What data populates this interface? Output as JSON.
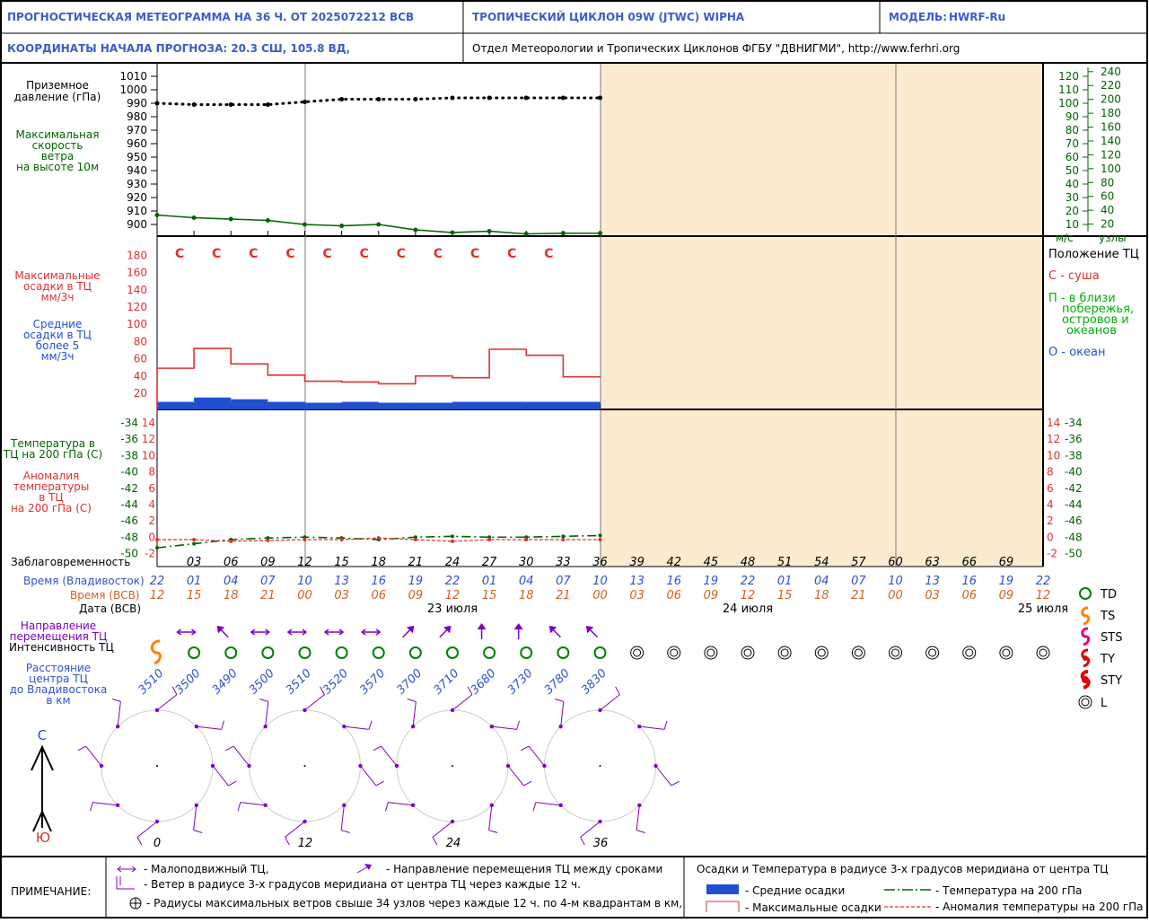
{
  "header": {
    "title": "ПРОГНОСТИЧЕСКАЯ МЕТЕОГРАММА НА 36 Ч. ОТ 2025072212 ВСВ",
    "cyclone": "ТРОПИЧЕСКИЙ ЦИКЛОН  09W  (JTWC)   WIPHA",
    "model_label": "МОДЕЛЬ:",
    "model": "HWRF-Ru",
    "coords": "КООРДИНАТЫ НАЧАЛА ПРОГНОЗА:  20.3  СШ,   105.8  ВД,",
    "org": "Отдел Метеорологии и Тропических Циклонов ФГБУ \"ДВНИГМИ\",  http://www.ferhri.org"
  },
  "labels": {
    "pressure": [
      "Приземное",
      "давление (гПа)"
    ],
    "wind": [
      "Максимальная",
      "скорость",
      "ветра",
      "на высоте 10м"
    ],
    "precip_max": [
      "Максимальные",
      "осадки в ТЦ",
      "мм/3ч"
    ],
    "precip_mean": [
      "Средние",
      "осадки в ТЦ",
      "более 5",
      "мм/3ч"
    ],
    "temp": [
      "Температура в",
      "ТЦ на 200 гПа (С)"
    ],
    "anom": [
      "Аномалия",
      "температуры",
      "в ТЦ",
      "на 200 гПа (С)"
    ],
    "lead": "Заблаговременность",
    "time_vl": "Время (Владивосток)",
    "time_vsv": "Время (ВСВ)",
    "date": "Дата (ВСВ)",
    "direction": [
      "Направление",
      "перемещения ТЦ"
    ],
    "intensity": "Интенсивность ТЦ",
    "distance": [
      "Расстояние",
      "центра ТЦ",
      "до Владивостока",
      "в км"
    ],
    "north": "С",
    "south": "Ю",
    "wind_units_ms": "м/с",
    "wind_units_kt": "узлы"
  },
  "position_legend": {
    "title": "Положение ТЦ",
    "land": "С - суша",
    "coast": [
      "П - в близи",
      "побережья,",
      "островов и",
      "океанов"
    ],
    "ocean": "О - океан"
  },
  "intensity_legend": [
    "TD",
    "TS",
    "STS",
    "TY",
    "STY",
    "L"
  ],
  "dates": [
    "23 июля",
    "24 июля",
    "25 июля"
  ],
  "wind_radii_hours": [
    "0",
    "12",
    "24",
    "36"
  ],
  "notes": {
    "title": "ПРИМЕЧАНИЕ:",
    "stationary": "- Малоподвижный ТЦ,",
    "direction": "- Направление перемещения ТЦ между сроками",
    "wind": "- Ветер в радиусе 3-х градусов меридиана от центра ТЦ через каждые 12 ч.",
    "radii": "- Радиусы максимальных ветров свыше 34 узлов через каждые 12 ч. по 4-м квадрантам в км,",
    "right_title": "Осадки и Температура в радиусе 3-х градусов меридиана от центра ТЦ",
    "mean_precip": "- Средние осадки",
    "max_precip": "- Максимальные осадки",
    "temp": "- Температура на 200 гПа",
    "anom": "- Аномалия температуры на 200 гПа"
  },
  "colors": {
    "header_text": "#3a5ccc",
    "pressure": "#000000",
    "wind": "#006400",
    "max_precip": "#e03030",
    "mean_precip": "#2050d0",
    "temp": "#006400",
    "anomaly": "#e03030",
    "forecast_bg": "#fdebd0",
    "time_vl": "#3050d0",
    "time_vsv": "#d06020",
    "coast": "#00b000",
    "direction": "#8000c0",
    "td": "#008000",
    "ts": "#ff8000",
    "sts": "#e0008a",
    "ty": "#e00000"
  },
  "chart_data": {
    "type": "line",
    "lead_hours": [
      "03",
      "06",
      "09",
      "12",
      "15",
      "18",
      "21",
      "24",
      "27",
      "30",
      "33",
      "36",
      "39",
      "42",
      "45",
      "48",
      "51",
      "54",
      "57",
      "60",
      "63",
      "66",
      "69"
    ],
    "time_vladivostok": [
      "22",
      "01",
      "04",
      "07",
      "10",
      "13",
      "16",
      "19",
      "22",
      "01",
      "04",
      "07",
      "10",
      "13",
      "16",
      "19",
      "22",
      "01",
      "04",
      "07",
      "10",
      "13",
      "16",
      "19",
      "22"
    ],
    "time_vsv": [
      "12",
      "15",
      "18",
      "21",
      "00",
      "03",
      "06",
      "09",
      "12",
      "15",
      "18",
      "21",
      "00",
      "03",
      "06",
      "09",
      "12",
      "15",
      "18",
      "21",
      "00",
      "03",
      "06",
      "09",
      "12"
    ],
    "forecast_hours": [
      0,
      3,
      6,
      9,
      12,
      15,
      18,
      21,
      24,
      27,
      30,
      33,
      36
    ],
    "pressure_axis": {
      "ticks": [
        900,
        910,
        920,
        930,
        940,
        950,
        960,
        970,
        980,
        990,
        1000,
        1010
      ]
    },
    "pressure_hpa": [
      990,
      989,
      989,
      989,
      991,
      993,
      993,
      993,
      994,
      994,
      994,
      994,
      994
    ],
    "wind_axis_ms": [
      10,
      20,
      30,
      40,
      50,
      60,
      70,
      80,
      90,
      100,
      110,
      120
    ],
    "wind_axis_kt": [
      20,
      40,
      60,
      80,
      100,
      120,
      140,
      160,
      180,
      200,
      220,
      240
    ],
    "wind_ms": [
      17,
      15,
      14,
      13,
      10,
      9,
      10,
      6,
      4,
      5,
      3,
      3.5,
      3.5
    ],
    "position": [
      "С",
      "С",
      "С",
      "С",
      "С",
      "С",
      "С",
      "С",
      "С",
      "С",
      "С"
    ],
    "precip_axis": [
      20,
      40,
      60,
      80,
      100,
      120,
      140,
      160,
      180
    ],
    "max_precip_mm3h": [
      48,
      71,
      53,
      40,
      33,
      32,
      30,
      39,
      37,
      70,
      63,
      38
    ],
    "mean_precip_mm3h": [
      9,
      14,
      12,
      9,
      8,
      9,
      8,
      8,
      9,
      9,
      9,
      9
    ],
    "temp_axis": [
      -34,
      -36,
      -38,
      -40,
      -42,
      -44,
      -46,
      -48,
      -50
    ],
    "anomaly_axis": [
      14,
      12,
      10,
      8,
      6,
      4,
      2,
      0,
      -2
    ],
    "temp_200_c": [
      -47,
      -47.5,
      -48,
      -48.2,
      -48.3,
      -48.2,
      -48,
      -48.3,
      -48.4,
      -48.3,
      -48.3,
      -48.4,
      -48.5
    ],
    "anomaly_c": [
      0,
      0,
      -0.2,
      -0.1,
      0,
      0,
      0.2,
      0,
      -0.2,
      0,
      0,
      0,
      0
    ],
    "distance_km": [
      "3510",
      "3500",
      "3490",
      "3500",
      "3510",
      "3520",
      "3570",
      "3700",
      "3710",
      "3680",
      "3730",
      "3780",
      "3830"
    ],
    "intensity": [
      "TS",
      "TD",
      "TD",
      "TD",
      "TD",
      "TD",
      "TD",
      "TD",
      "TD",
      "TD",
      "TD",
      "TD",
      "TD",
      "L",
      "L",
      "L",
      "L",
      "L",
      "L",
      "L",
      "L",
      "L",
      "L",
      "L",
      "L"
    ],
    "direction": [
      "stationary",
      "NW",
      "stationary",
      "stationary",
      "stationary",
      "stationary",
      "NE",
      "NE",
      "N",
      "N",
      "NW",
      "NW"
    ]
  }
}
